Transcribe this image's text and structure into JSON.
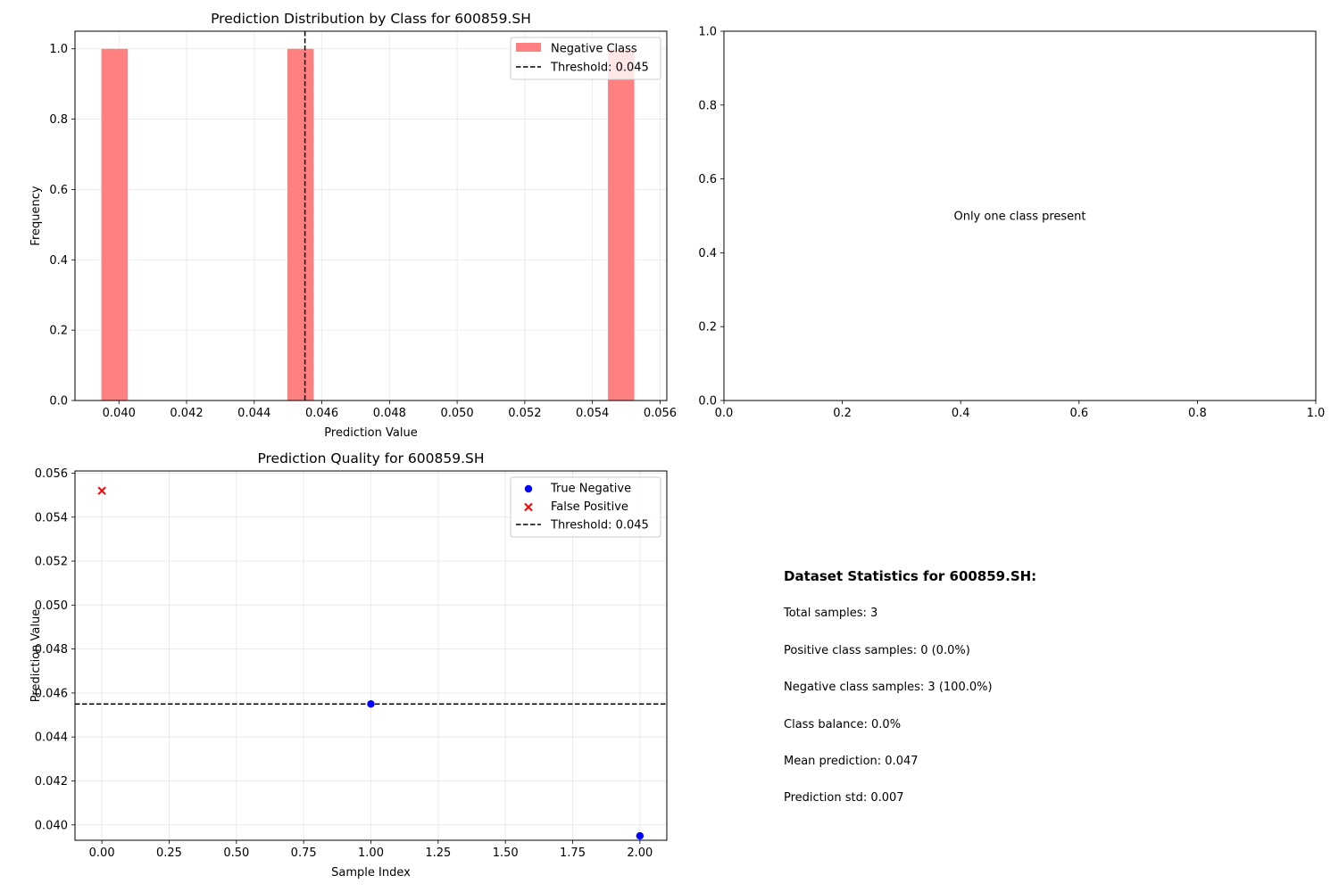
{
  "chart_data": [
    {
      "type": "bar",
      "title": "Prediction Distribution by Class for 600859.SH",
      "xlabel": "Prediction Value",
      "ylabel": "Frequency",
      "xlim": [
        0.0387,
        0.0562
      ],
      "ylim": [
        0,
        1.05
      ],
      "xticks": [
        "0.040",
        "0.042",
        "0.044",
        "0.046",
        "0.048",
        "0.050",
        "0.052",
        "0.054",
        "0.056"
      ],
      "xtick_values": [
        0.04,
        0.042,
        0.044,
        0.046,
        0.048,
        0.05,
        0.052,
        0.054,
        0.056
      ],
      "yticks": [
        "0.0",
        "0.2",
        "0.4",
        "0.6",
        "0.8",
        "1.0"
      ],
      "ytick_values": [
        0,
        0.2,
        0.4,
        0.6,
        0.8,
        1.0
      ],
      "grid": true,
      "legend_position": "top-right",
      "bars": [
        {
          "x0": 0.03948,
          "x1": 0.04026,
          "value": 1
        },
        {
          "x0": 0.04498,
          "x1": 0.04576,
          "value": 1
        },
        {
          "x0": 0.05446,
          "x1": 0.05524,
          "value": 1
        }
      ],
      "bar_series_name": "Negative Class",
      "bar_color": "#ff8080",
      "threshold": {
        "value": 0.0455,
        "label": "Threshold: 0.045"
      }
    },
    {
      "type": "scatter",
      "annotation": "Only one class present",
      "xlim": [
        0,
        1
      ],
      "ylim": [
        0,
        1
      ],
      "xticks": [
        "0.0",
        "0.2",
        "0.4",
        "0.6",
        "0.8",
        "1.0"
      ],
      "xtick_values": [
        0,
        0.2,
        0.4,
        0.6,
        0.8,
        1.0
      ],
      "yticks": [
        "0.0",
        "0.2",
        "0.4",
        "0.6",
        "0.8",
        "1.0"
      ],
      "ytick_values": [
        0,
        0.2,
        0.4,
        0.6,
        0.8,
        1.0
      ],
      "grid": false
    },
    {
      "type": "scatter",
      "title": "Prediction Quality for 600859.SH",
      "xlabel": "Sample Index",
      "ylabel": "Prediction Value",
      "xlim": [
        -0.1,
        2.1
      ],
      "ylim": [
        0.0393,
        0.0561
      ],
      "xticks": [
        "0.00",
        "0.25",
        "0.50",
        "0.75",
        "1.00",
        "1.25",
        "1.50",
        "1.75",
        "2.00"
      ],
      "xtick_values": [
        0,
        0.25,
        0.5,
        0.75,
        1.0,
        1.25,
        1.5,
        1.75,
        2.0
      ],
      "yticks": [
        "0.040",
        "0.042",
        "0.044",
        "0.046",
        "0.048",
        "0.050",
        "0.052",
        "0.054",
        "0.056"
      ],
      "ytick_values": [
        0.04,
        0.042,
        0.044,
        0.046,
        0.048,
        0.05,
        0.052,
        0.054,
        0.056
      ],
      "grid": true,
      "legend_position": "top-right",
      "series": [
        {
          "name": "True Negative",
          "marker": "circle",
          "color": "#0000ff",
          "points": [
            {
              "x": 1,
              "y": 0.0455
            },
            {
              "x": 2,
              "y": 0.0395
            }
          ]
        },
        {
          "name": "False Positive",
          "marker": "x",
          "color": "#ff0000",
          "points": [
            {
              "x": 0,
              "y": 0.0552
            }
          ]
        }
      ],
      "threshold": {
        "value": 0.0455,
        "label": "Threshold: 0.045"
      }
    }
  ],
  "stats": {
    "title": "Dataset Statistics for 600859.SH:",
    "lines": [
      "Total samples: 3",
      "Positive class samples: 0 (0.0%)",
      "Negative class samples: 3 (100.0%)",
      "Class balance: 0.0%",
      "Mean prediction: 0.047",
      "Prediction std: 0.007"
    ]
  }
}
